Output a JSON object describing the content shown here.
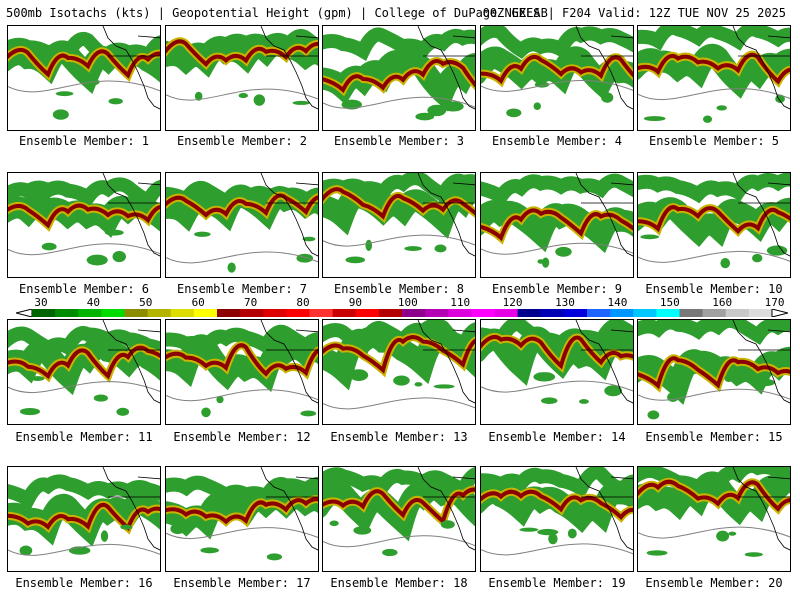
{
  "header": {
    "left_text": "500mb Isotachs (kts) | Geopotential Height (gpm) | College of DuPage NEXLAB",
    "right_text": "00Z GEFS | F204 Valid: 12Z TUE NOV 25 2025"
  },
  "members": [
    {
      "label": "Ensemble Member: 1"
    },
    {
      "label": "Ensemble Member: 2"
    },
    {
      "label": "Ensemble Member: 3"
    },
    {
      "label": "Ensemble Member: 4"
    },
    {
      "label": "Ensemble Member: 5"
    },
    {
      "label": "Ensemble Member: 6"
    },
    {
      "label": "Ensemble Member: 7"
    },
    {
      "label": "Ensemble Member: 8"
    },
    {
      "label": "Ensemble Member: 9"
    },
    {
      "label": "Ensemble Member: 10"
    },
    {
      "label": "Ensemble Member: 11"
    },
    {
      "label": "Ensemble Member: 12"
    },
    {
      "label": "Ensemble Member: 13"
    },
    {
      "label": "Ensemble Member: 14"
    },
    {
      "label": "Ensemble Member: 15"
    },
    {
      "label": "Ensemble Member: 16"
    },
    {
      "label": "Ensemble Member: 17"
    },
    {
      "label": "Ensemble Member: 18"
    },
    {
      "label": "Ensemble Member: 19"
    },
    {
      "label": "Ensemble Member: 20"
    }
  ],
  "legend": {
    "labels": [
      "30",
      "40",
      "50",
      "60",
      "70",
      "80",
      "90",
      "100",
      "110",
      "120",
      "130",
      "140",
      "150",
      "160",
      "170"
    ],
    "colors": [
      "#006400",
      "#008c00",
      "#00b400",
      "#00dc00",
      "#8c8c00",
      "#b4b400",
      "#dcdc00",
      "#ffff00",
      "#8c0000",
      "#b40000",
      "#dc0000",
      "#ff0000",
      "#ff3232",
      "#c80000",
      "#ff0000",
      "#b40000",
      "#8c008c",
      "#b400b4",
      "#dc00dc",
      "#ff00ff",
      "#e600e6",
      "#00008c",
      "#0000b4",
      "#0000dc",
      "#1e64ff",
      "#0096ff",
      "#00c8ff",
      "#00ffff",
      "#787878",
      "#a0a0a0",
      "#c8c8c8",
      "#dcdcdc"
    ],
    "band_color": "#2e9e2e",
    "core_color": "#8b0000",
    "mid_color": "#c8b400",
    "contour_color": "#808080",
    "coast_color": "#000000"
  }
}
